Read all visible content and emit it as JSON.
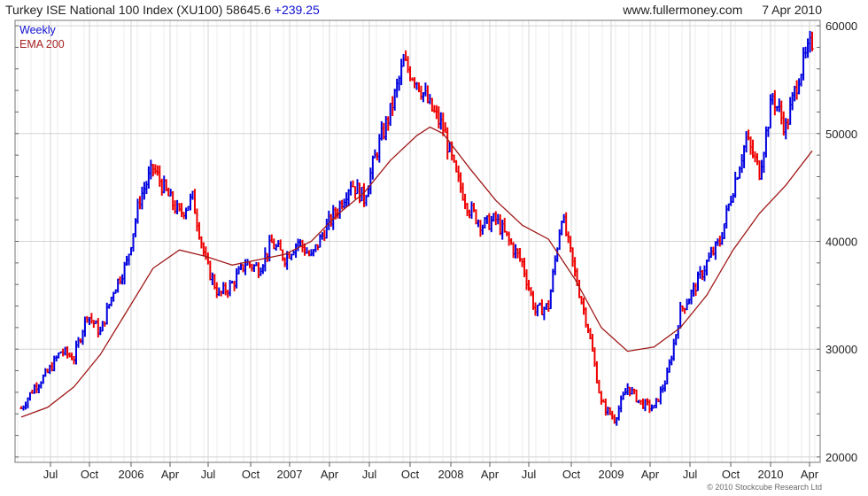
{
  "header": {
    "title": "Turkey ISE National 100 Index (XU100) 58645.6",
    "change": "+239.25",
    "site": "www.fullermoney.com",
    "date": "7 Apr 2010"
  },
  "legend": {
    "series1": "Weekly",
    "series2": "EMA 200"
  },
  "copyright": "© 2010 Stockcube Research Ltd",
  "colors": {
    "up": "#0000e0",
    "down": "#ee0000",
    "ema": "#a01818",
    "grid": "#d4d4d4"
  },
  "chart_data": {
    "type": "line",
    "x_tick_labels": [
      "Jul",
      "Oct",
      "2006",
      "Apr",
      "Jul",
      "Oct",
      "2007",
      "Apr",
      "Jul",
      "Oct",
      "2008",
      "Apr",
      "Jul",
      "Oct",
      "2009",
      "Apr",
      "Jul",
      "Oct",
      "2010",
      "Apr"
    ],
    "y_tick_labels": [
      "20000",
      "30000",
      "40000",
      "50000",
      "60000"
    ],
    "ylim": [
      19500,
      60500
    ],
    "grid": true,
    "legend_position": "top-left",
    "series": [
      {
        "name": "Weekly",
        "style": "ohlc-bars",
        "points": [
          [
            0,
            24500
          ],
          [
            2,
            26500
          ],
          [
            4,
            27800
          ],
          [
            6,
            29800
          ],
          [
            8,
            29200
          ],
          [
            10,
            33300
          ],
          [
            12,
            31500
          ],
          [
            14,
            35500
          ],
          [
            16,
            38000
          ],
          [
            18,
            44000
          ],
          [
            20,
            46800
          ],
          [
            22,
            44500
          ],
          [
            24,
            42500
          ],
          [
            26,
            44000
          ],
          [
            28,
            38000
          ],
          [
            30,
            35000
          ],
          [
            32,
            36000
          ],
          [
            34,
            38000
          ],
          [
            36,
            37500
          ],
          [
            38,
            39800
          ],
          [
            40,
            38500
          ],
          [
            42,
            40000
          ],
          [
            44,
            38500
          ],
          [
            46,
            41000
          ],
          [
            48,
            43000
          ],
          [
            50,
            45500
          ],
          [
            52,
            44000
          ],
          [
            54,
            48500
          ],
          [
            56,
            52000
          ],
          [
            58,
            56500
          ],
          [
            60,
            55000
          ],
          [
            62,
            52500
          ],
          [
            64,
            50500
          ],
          [
            66,
            46000
          ],
          [
            68,
            43000
          ],
          [
            70,
            41500
          ],
          [
            72,
            42000
          ],
          [
            74,
            40000
          ],
          [
            76,
            38000
          ],
          [
            78,
            33500
          ],
          [
            80,
            34000
          ],
          [
            82,
            42500
          ],
          [
            84,
            37000
          ],
          [
            86,
            32000
          ],
          [
            88,
            25000
          ],
          [
            90,
            23500
          ],
          [
            92,
            26500
          ],
          [
            94,
            25000
          ],
          [
            96,
            24500
          ],
          [
            98,
            27500
          ],
          [
            100,
            33500
          ],
          [
            102,
            35500
          ],
          [
            104,
            38000
          ],
          [
            106,
            40000
          ],
          [
            108,
            45000
          ],
          [
            110,
            49500
          ],
          [
            112,
            46500
          ],
          [
            114,
            53500
          ],
          [
            116,
            50500
          ],
          [
            118,
            55500
          ],
          [
            120,
            58500
          ]
        ]
      },
      {
        "name": "EMA 200",
        "style": "line",
        "points": [
          [
            0,
            23700
          ],
          [
            4,
            24600
          ],
          [
            8,
            26500
          ],
          [
            12,
            29500
          ],
          [
            16,
            33500
          ],
          [
            20,
            37500
          ],
          [
            24,
            39200
          ],
          [
            28,
            38600
          ],
          [
            32,
            37800
          ],
          [
            36,
            38300
          ],
          [
            40,
            38800
          ],
          [
            44,
            40000
          ],
          [
            48,
            42500
          ],
          [
            52,
            44500
          ],
          [
            56,
            47500
          ],
          [
            60,
            49800
          ],
          [
            62,
            50600
          ],
          [
            64,
            50000
          ],
          [
            68,
            46800
          ],
          [
            72,
            43800
          ],
          [
            76,
            41500
          ],
          [
            80,
            40200
          ],
          [
            84,
            36500
          ],
          [
            88,
            32000
          ],
          [
            92,
            29800
          ],
          [
            96,
            30200
          ],
          [
            100,
            32000
          ],
          [
            104,
            35000
          ],
          [
            108,
            39200
          ],
          [
            112,
            42600
          ],
          [
            116,
            45200
          ],
          [
            120,
            48400
          ]
        ]
      }
    ]
  }
}
